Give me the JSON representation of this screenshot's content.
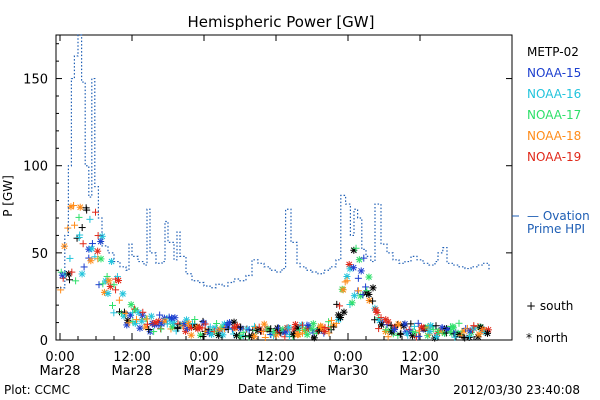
{
  "footer": {
    "plot_credit": "Plot: CCMC",
    "timestamp": "2012/03/30 23:40:08"
  },
  "legend_markers": {
    "south": "+ south",
    "north": "* north"
  },
  "chart_data": {
    "type": "scatter",
    "title": "Hemispheric Power [GW]",
    "xlabel": "Date and Time",
    "ylabel": "P [GW]",
    "xlim_hours": [
      0,
      72
    ],
    "ylim": [
      0,
      175
    ],
    "yticks": [
      0,
      50,
      100,
      150
    ],
    "xticks": [
      {
        "h": 0,
        "top": "0:00",
        "bottom": "Mar28"
      },
      {
        "h": 12,
        "top": "12:00",
        "bottom": "Mar28"
      },
      {
        "h": 24,
        "top": "0:00",
        "bottom": "Mar29"
      },
      {
        "h": 36,
        "top": "12:00",
        "bottom": "Mar29"
      },
      {
        "h": 48,
        "top": "0:00",
        "bottom": "Mar30"
      },
      {
        "h": 60,
        "top": "12:00",
        "bottom": "Mar30"
      }
    ],
    "grid": false,
    "legend_position": "right",
    "series": [
      {
        "name": "METP-02",
        "color": "#000000"
      },
      {
        "name": "NOAA-15",
        "color": "#1c3fcf"
      },
      {
        "name": "NOAA-16",
        "color": "#22c4dc"
      },
      {
        "name": "NOAA-17",
        "color": "#2ee06a"
      },
      {
        "name": "NOAA-18",
        "color": "#ff8c1a"
      },
      {
        "name": "NOAA-19",
        "color": "#e0291a"
      }
    ],
    "ovation": {
      "label_line1": "— Ovation",
      "label_line2": "Prime HPI",
      "color": "#1f5fb5",
      "points": [
        [
          0,
          30
        ],
        [
          0.8,
          60
        ],
        [
          1.4,
          100
        ],
        [
          1.9,
          150
        ],
        [
          2.4,
          163
        ],
        [
          3.0,
          175
        ],
        [
          3.6,
          148
        ],
        [
          4.2,
          100
        ],
        [
          4.8,
          82
        ],
        [
          5.3,
          150
        ],
        [
          5.8,
          88
        ],
        [
          6.4,
          70
        ],
        [
          7.0,
          54
        ],
        [
          8.0,
          50
        ],
        [
          9.0,
          45
        ],
        [
          10.0,
          42
        ],
        [
          11.0,
          40
        ],
        [
          11.5,
          55
        ],
        [
          12.0,
          48
        ],
        [
          13.0,
          45
        ],
        [
          14.0,
          43
        ],
        [
          14.5,
          75
        ],
        [
          15.0,
          50
        ],
        [
          16.0,
          44
        ],
        [
          17.0,
          45
        ],
        [
          17.5,
          68
        ],
        [
          18.0,
          56
        ],
        [
          19.0,
          46
        ],
        [
          19.5,
          62
        ],
        [
          20.0,
          48
        ],
        [
          21.0,
          38
        ],
        [
          22.0,
          34
        ],
        [
          23.0,
          33
        ],
        [
          24.0,
          31
        ],
        [
          25.0,
          30
        ],
        [
          26.0,
          32
        ],
        [
          27.0,
          31
        ],
        [
          28.0,
          33
        ],
        [
          29.0,
          35
        ],
        [
          30.0,
          34
        ],
        [
          31.0,
          37
        ],
        [
          32.0,
          46
        ],
        [
          33.0,
          44
        ],
        [
          34.0,
          42
        ],
        [
          35.0,
          40
        ],
        [
          36.0,
          39
        ],
        [
          37.0,
          41
        ],
        [
          37.6,
          75
        ],
        [
          38.5,
          56
        ],
        [
          39.5,
          44
        ],
        [
          40.0,
          42
        ],
        [
          41.0,
          40
        ],
        [
          42.0,
          39
        ],
        [
          43.0,
          38
        ],
        [
          44.0,
          40
        ],
        [
          45.0,
          42
        ],
        [
          46.0,
          46
        ],
        [
          46.8,
          83
        ],
        [
          47.6,
          78
        ],
        [
          48.4,
          60
        ],
        [
          49.0,
          75
        ],
        [
          49.6,
          70
        ],
        [
          50.3,
          52
        ],
        [
          51.0,
          48
        ],
        [
          51.8,
          45
        ],
        [
          52.5,
          78
        ],
        [
          53.5,
          55
        ],
        [
          54.5,
          50
        ],
        [
          55.5,
          46
        ],
        [
          56.5,
          44
        ],
        [
          57.5,
          45
        ],
        [
          58.5,
          48
        ],
        [
          59.5,
          46
        ],
        [
          60.5,
          44
        ],
        [
          61.5,
          43
        ],
        [
          62.5,
          45
        ],
        [
          63.0,
          50
        ],
        [
          63.8,
          53
        ],
        [
          64.5,
          44
        ],
        [
          65.5,
          43
        ],
        [
          66.5,
          42
        ],
        [
          67.5,
          41
        ],
        [
          68.5,
          42
        ],
        [
          69.5,
          43
        ],
        [
          70.5,
          44
        ],
        [
          71.5,
          40
        ]
      ]
    }
  }
}
